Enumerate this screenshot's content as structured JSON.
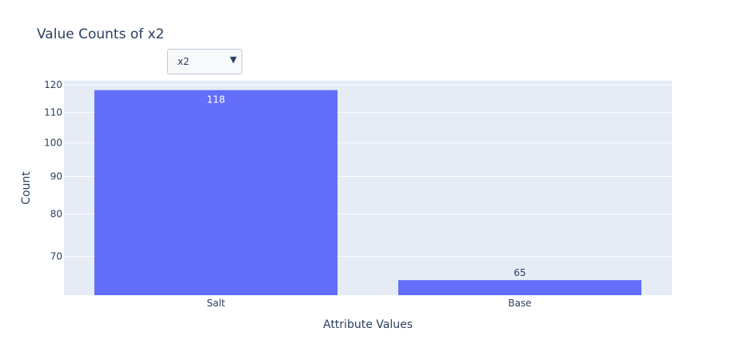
{
  "dropdown": {
    "selected": "x2",
    "arrow_icon": "triangle-down-icon"
  },
  "colors": {
    "plot_bg": "#e5ecf6",
    "bar": "#636efa",
    "grid": "#ffffff",
    "text": "#2a3f5f"
  },
  "chart_data": {
    "type": "bar",
    "title": "Value Counts of x2",
    "xlabel": "Attribute Values",
    "ylabel": "Count",
    "categories": [
      "Salt",
      "Base"
    ],
    "values": [
      118,
      65
    ],
    "data_labels": [
      "118",
      "65"
    ],
    "yticks": [
      70,
      80,
      90,
      100,
      110,
      120
    ],
    "ylim": [
      62,
      121.5
    ],
    "yscale": "log",
    "grid": true
  }
}
